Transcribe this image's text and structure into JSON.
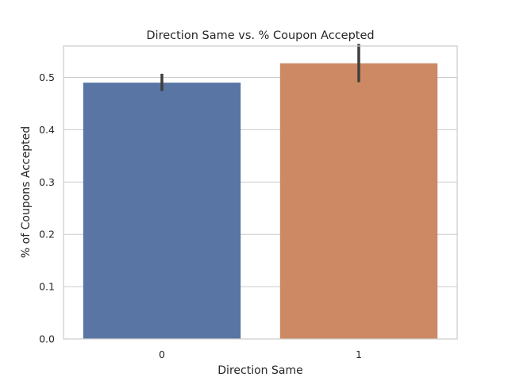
{
  "chart_data": {
    "type": "bar",
    "title": "Direction Same vs. % Coupon Accepted",
    "xlabel": "Direction Same",
    "ylabel": "% of Coupons Accepted",
    "categories": [
      "0",
      "1"
    ],
    "values": [
      0.49,
      0.527
    ],
    "error_low": [
      0.474,
      0.491
    ],
    "error_high": [
      0.507,
      0.564
    ],
    "colors": [
      "#5975a4",
      "#cc8963"
    ],
    "error_bar_color": "#3f3f3f",
    "ylim": [
      0,
      0.56
    ],
    "yticks": [
      0.0,
      0.1,
      0.2,
      0.3,
      0.4,
      0.5
    ],
    "ytick_labels": [
      "0.0",
      "0.1",
      "0.2",
      "0.3",
      "0.4",
      "0.5"
    ],
    "grid": "horizontal",
    "grid_color": "#cccccc",
    "legend": "none"
  }
}
